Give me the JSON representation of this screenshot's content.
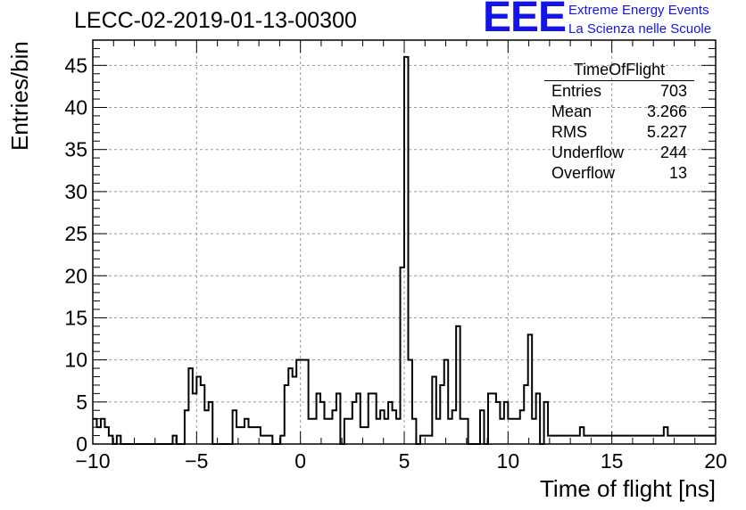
{
  "header": {
    "title": "LECC-02-2019-01-13-00300",
    "logo_text": "EEE",
    "logo_line1": "Extreme Energy Events",
    "logo_line2": "La Scienza nelle Scuole"
  },
  "stats": {
    "title": "TimeOfFlight",
    "rows": [
      {
        "label": "Entries",
        "value": "703"
      },
      {
        "label": "Mean",
        "value": "3.266"
      },
      {
        "label": "RMS",
        "value": "5.227"
      },
      {
        "label": "Underflow",
        "value": "244"
      },
      {
        "label": "Overflow",
        "value": "13"
      }
    ]
  },
  "chart_data": {
    "type": "bar",
    "style": "step-histogram",
    "xlabel": "Time of flight [ns]",
    "ylabel": "Entries/bin",
    "xlim": [
      -10,
      20
    ],
    "ylim": [
      0,
      48
    ],
    "bin_width": 0.3333,
    "bin_start": -10,
    "xticks": [
      -10,
      -5,
      0,
      5,
      10,
      15,
      20
    ],
    "yticks": [
      0,
      5,
      10,
      15,
      20,
      25,
      30,
      35,
      40,
      45
    ],
    "grid": true,
    "line_color": "#000000",
    "values": [
      3,
      2,
      3,
      2,
      1,
      0,
      1,
      0,
      0,
      0,
      0,
      0,
      0,
      0,
      0,
      0,
      0,
      0,
      0,
      0,
      1,
      0,
      0,
      4,
      9,
      6,
      8,
      7,
      4,
      5,
      0,
      0,
      0,
      0,
      0,
      4,
      2,
      2,
      3,
      2,
      2,
      2,
      1,
      1,
      1,
      0,
      0,
      1,
      7,
      9,
      8,
      10,
      10,
      10,
      3,
      3,
      6,
      5,
      3,
      3,
      4,
      6,
      0,
      3,
      3,
      5,
      6,
      2,
      2,
      6,
      6,
      3,
      4,
      3,
      5,
      4,
      3,
      21,
      46,
      10,
      3,
      0,
      1,
      1,
      1,
      8,
      3,
      7,
      10,
      3,
      4,
      14,
      3,
      3,
      0,
      0,
      0,
      4,
      0,
      6,
      6,
      5,
      3,
      5,
      3,
      3,
      3,
      4,
      7,
      13,
      3,
      6,
      0,
      5,
      1,
      1,
      1,
      1,
      1,
      1,
      1,
      1,
      2,
      1,
      1,
      1,
      1,
      1,
      1,
      1,
      1,
      1,
      1,
      1,
      1,
      1,
      1,
      1,
      1,
      1,
      1,
      1,
      1,
      2,
      1,
      1,
      1,
      1,
      1,
      1,
      1,
      1,
      1,
      1,
      1,
      1
    ]
  }
}
